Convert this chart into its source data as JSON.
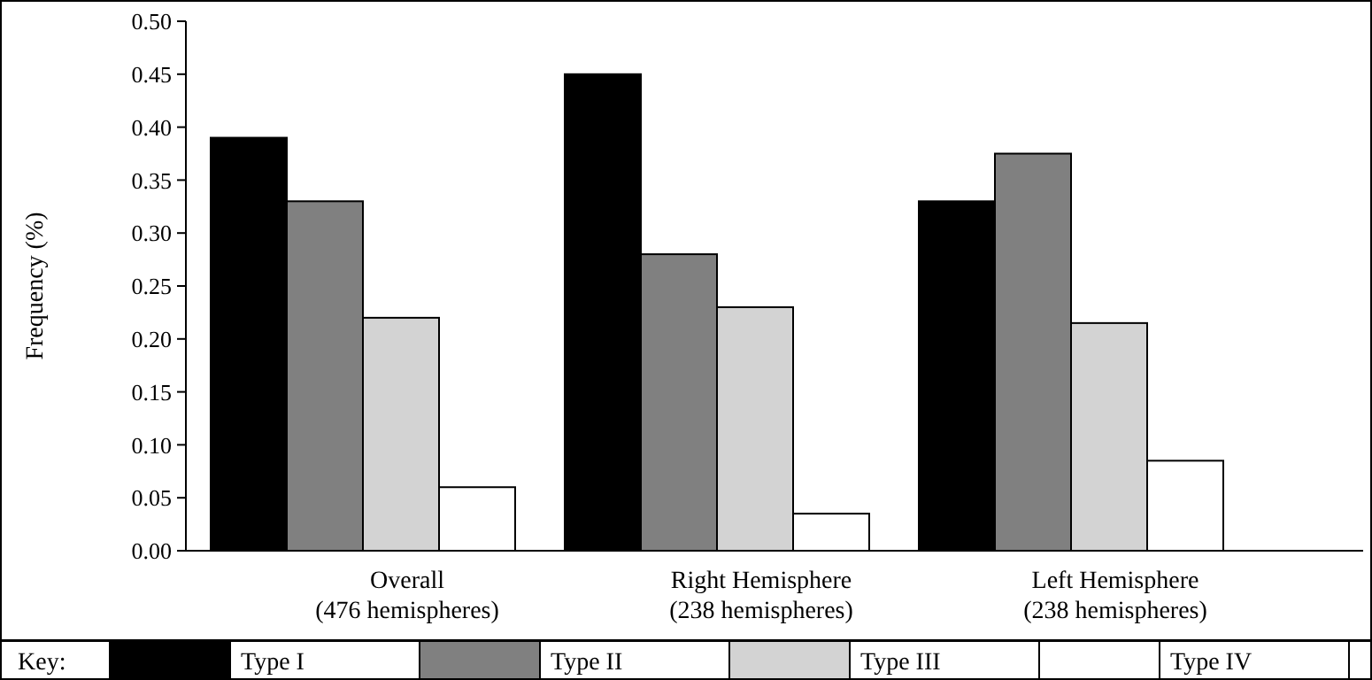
{
  "chart_data": {
    "type": "bar",
    "ylabel": "Frequency (%)",
    "categories": [
      "Overall\n(476 hemispheres)",
      "Right Hemisphere\n(238 hemispheres)",
      "Left Hemisphere\n(238 hemispheres)"
    ],
    "series": [
      {
        "name": "Type I",
        "color": "#000000",
        "values": [
          0.39,
          0.45,
          0.33
        ]
      },
      {
        "name": "Type II",
        "color": "#808080",
        "values": [
          0.33,
          0.28,
          0.375
        ]
      },
      {
        "name": "Type III",
        "color": "#d3d3d3",
        "values": [
          0.22,
          0.23,
          0.215
        ]
      },
      {
        "name": "Type IV",
        "color": "#ffffff",
        "values": [
          0.06,
          0.035,
          0.085
        ]
      }
    ],
    "legend_title": "Key:",
    "legend": "bottom",
    "grid": false,
    "ylim": [
      0,
      0.5
    ],
    "yticks": [
      {
        "value": 0,
        "label": "0.00"
      },
      {
        "value": 0.05,
        "label": "0.05"
      },
      {
        "value": 0.1,
        "label": "0.10"
      },
      {
        "value": 0.15,
        "label": "0.15"
      },
      {
        "value": 0.2,
        "label": "0.20"
      },
      {
        "value": 0.25,
        "label": "0.25"
      },
      {
        "value": 0.3,
        "label": "0.30"
      },
      {
        "value": 0.35,
        "label": "0.35"
      },
      {
        "value": 0.4,
        "label": "0.40"
      },
      {
        "value": 0.45,
        "label": "0.45"
      },
      {
        "value": 0.5,
        "label": "0.50"
      }
    ]
  }
}
